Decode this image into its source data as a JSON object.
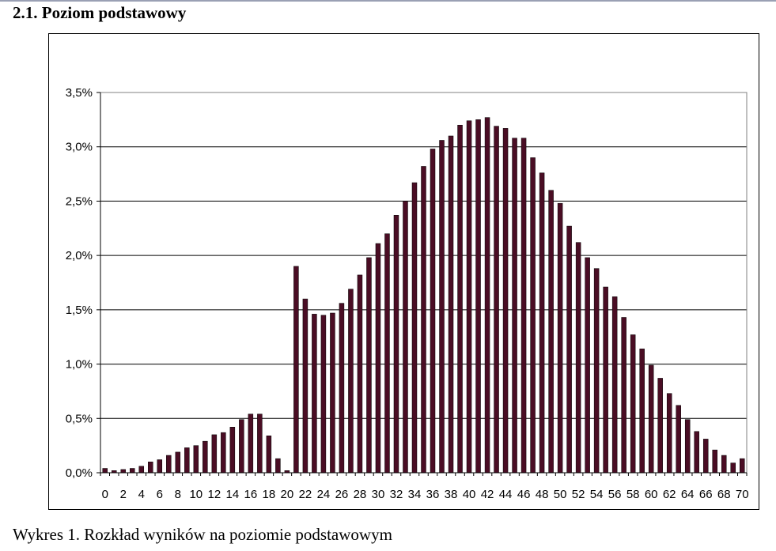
{
  "section_heading": "2.1. Poziom podstawowy",
  "caption": "Wykres 1. Rozkład wyników na poziomie podstawowym",
  "colors": {
    "bar": "#4a0d24",
    "grid": "#000000",
    "axis": "#808080"
  },
  "chart_data": {
    "type": "bar",
    "title": "",
    "xlabel": "",
    "ylabel": "",
    "ylim": [
      0,
      3.5
    ],
    "y_ticks": [
      "0,0%",
      "0,5%",
      "1,0%",
      "1,5%",
      "2,0%",
      "2,5%",
      "3,0%",
      "3,5%"
    ],
    "y_tick_values": [
      0,
      0.5,
      1.0,
      1.5,
      2.0,
      2.5,
      3.0,
      3.5
    ],
    "x_tick_labels": [
      "0",
      "2",
      "4",
      "6",
      "8",
      "10",
      "12",
      "14",
      "16",
      "18",
      "20",
      "22",
      "24",
      "26",
      "28",
      "30",
      "32",
      "34",
      "36",
      "38",
      "40",
      "42",
      "44",
      "46",
      "48",
      "50",
      "52",
      "54",
      "56",
      "58",
      "60",
      "62",
      "64",
      "66",
      "68",
      "70"
    ],
    "categories": [
      0,
      1,
      2,
      3,
      4,
      5,
      6,
      7,
      8,
      9,
      10,
      11,
      12,
      13,
      14,
      15,
      16,
      17,
      18,
      19,
      20,
      21,
      22,
      23,
      24,
      25,
      26,
      27,
      28,
      29,
      30,
      31,
      32,
      33,
      34,
      35,
      36,
      37,
      38,
      39,
      40,
      41,
      42,
      43,
      44,
      45,
      46,
      47,
      48,
      49,
      50,
      51,
      52,
      53,
      54,
      55,
      56,
      57,
      58,
      59,
      60,
      61,
      62,
      63,
      64,
      65,
      66,
      67,
      68,
      69,
      70
    ],
    "values": [
      0.04,
      0.02,
      0.03,
      0.04,
      0.06,
      0.1,
      0.12,
      0.16,
      0.19,
      0.23,
      0.25,
      0.29,
      0.35,
      0.37,
      0.42,
      0.49,
      0.54,
      0.54,
      0.34,
      0.13,
      0.02,
      1.9,
      1.6,
      1.46,
      1.45,
      1.47,
      1.56,
      1.69,
      1.82,
      1.98,
      2.11,
      2.2,
      2.37,
      2.5,
      2.67,
      2.82,
      2.98,
      3.06,
      3.1,
      3.2,
      3.24,
      3.25,
      3.27,
      3.19,
      3.17,
      3.08,
      3.08,
      2.9,
      2.76,
      2.6,
      2.48,
      2.27,
      2.12,
      1.98,
      1.88,
      1.71,
      1.62,
      1.43,
      1.27,
      1.14,
      0.99,
      0.87,
      0.73,
      0.62,
      0.49,
      0.38,
      0.31,
      0.21,
      0.16,
      0.09,
      0.13
    ],
    "grid": true,
    "legend": "none"
  }
}
